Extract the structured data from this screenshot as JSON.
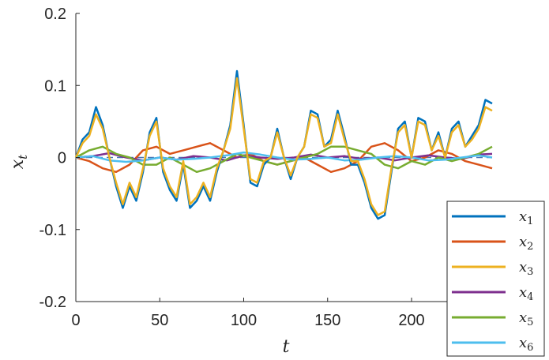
{
  "chart_data": {
    "type": "line",
    "xlabel": "t",
    "ylabel": "x",
    "ylabel_subscript": "t",
    "xlim": [
      0,
      256
    ],
    "ylim": [
      -0.2,
      0.2
    ],
    "xticks": [
      0,
      50,
      100,
      150,
      200
    ],
    "xtick_labels": [
      "0",
      "50",
      "100",
      "150",
      "200"
    ],
    "yticks": [
      0.2,
      0.1,
      0,
      -0.1,
      -0.2
    ],
    "ytick_labels": [
      "0.2",
      "0.1",
      "0",
      "-0.1",
      "-0.2"
    ],
    "grid": false,
    "legend_position": "bottom-right",
    "reference_line": {
      "y": 0,
      "style": "dashed",
      "color": "#4a78b4"
    },
    "series": [
      {
        "name": "x",
        "subscript": "1",
        "color": "#0072BD",
        "x": [
          0,
          4,
          8,
          12,
          16,
          20,
          24,
          28,
          32,
          36,
          40,
          44,
          48,
          52,
          56,
          60,
          64,
          68,
          72,
          76,
          80,
          84,
          88,
          92,
          96,
          100,
          104,
          108,
          112,
          116,
          120,
          124,
          128,
          132,
          136,
          140,
          144,
          148,
          152,
          156,
          160,
          164,
          168,
          172,
          176,
          180,
          184,
          188,
          192,
          196,
          200,
          204,
          208,
          212,
          216,
          220,
          224,
          228,
          232,
          236,
          240,
          244,
          248
        ],
        "y": [
          0.0,
          0.025,
          0.035,
          0.07,
          0.045,
          0.0,
          -0.04,
          -0.07,
          -0.04,
          -0.06,
          -0.02,
          0.035,
          0.055,
          -0.02,
          -0.045,
          -0.06,
          -0.01,
          -0.07,
          -0.06,
          -0.04,
          -0.06,
          -0.02,
          0.01,
          0.045,
          0.12,
          0.045,
          -0.035,
          -0.04,
          -0.01,
          0.0,
          0.04,
          0.0,
          -0.03,
          0.0,
          0.015,
          0.065,
          0.06,
          0.015,
          0.025,
          0.065,
          0.03,
          -0.01,
          -0.01,
          -0.035,
          -0.07,
          -0.085,
          -0.08,
          -0.02,
          0.04,
          0.05,
          0.0,
          0.055,
          0.05,
          0.01,
          0.035,
          0.0,
          0.04,
          0.05,
          0.015,
          0.03,
          0.045,
          0.08,
          0.075
        ]
      },
      {
        "name": "x",
        "subscript": "2",
        "color": "#D95319",
        "x": [
          0,
          8,
          16,
          24,
          32,
          40,
          48,
          56,
          64,
          72,
          80,
          88,
          96,
          104,
          112,
          120,
          128,
          136,
          144,
          152,
          160,
          168,
          176,
          184,
          192,
          200,
          208,
          216,
          224,
          232,
          240,
          248
        ],
        "y": [
          0.0,
          -0.005,
          -0.015,
          -0.02,
          -0.01,
          0.01,
          0.015,
          0.005,
          0.01,
          0.015,
          0.02,
          0.01,
          0.0,
          0.005,
          -0.005,
          -0.01,
          -0.005,
          0.0,
          -0.01,
          -0.02,
          -0.015,
          -0.005,
          0.015,
          0.02,
          0.01,
          -0.005,
          0.0,
          0.01,
          0.005,
          -0.005,
          -0.01,
          -0.015
        ]
      },
      {
        "name": "x",
        "subscript": "3",
        "color": "#EDB120",
        "x": [
          0,
          4,
          8,
          12,
          16,
          20,
          24,
          28,
          32,
          36,
          40,
          44,
          48,
          52,
          56,
          60,
          64,
          68,
          72,
          76,
          80,
          84,
          88,
          92,
          96,
          100,
          104,
          108,
          112,
          116,
          120,
          124,
          128,
          132,
          136,
          140,
          144,
          148,
          152,
          156,
          160,
          164,
          168,
          172,
          176,
          180,
          184,
          188,
          192,
          196,
          200,
          204,
          208,
          212,
          216,
          220,
          224,
          228,
          232,
          236,
          240,
          244,
          248
        ],
        "y": [
          0.0,
          0.02,
          0.03,
          0.06,
          0.04,
          0.0,
          -0.035,
          -0.065,
          -0.035,
          -0.055,
          -0.015,
          0.03,
          0.05,
          -0.015,
          -0.04,
          -0.055,
          -0.005,
          -0.065,
          -0.055,
          -0.035,
          -0.055,
          -0.015,
          0.01,
          0.04,
          0.11,
          0.04,
          -0.03,
          -0.035,
          -0.005,
          0.0,
          0.035,
          0.0,
          -0.025,
          0.0,
          0.015,
          0.06,
          0.055,
          0.015,
          0.02,
          0.06,
          0.025,
          -0.005,
          -0.005,
          -0.03,
          -0.065,
          -0.08,
          -0.075,
          -0.015,
          0.035,
          0.045,
          0.0,
          0.05,
          0.045,
          0.01,
          0.03,
          0.0,
          0.035,
          0.045,
          0.015,
          0.025,
          0.04,
          0.07,
          0.065
        ]
      },
      {
        "name": "x",
        "subscript": "4",
        "color": "#7E2F8E",
        "x": [
          0,
          10,
          20,
          30,
          40,
          50,
          60,
          70,
          80,
          90,
          100,
          110,
          120,
          130,
          140,
          150,
          160,
          170,
          180,
          190,
          200,
          210,
          220,
          230,
          240,
          248
        ],
        "y": [
          0.0,
          0.002,
          0.006,
          0.0,
          -0.004,
          0.0,
          -0.003,
          0.002,
          0.0,
          -0.004,
          0.003,
          0.0,
          -0.002,
          0.0,
          0.004,
          0.0,
          0.002,
          -0.002,
          0.0,
          -0.004,
          0.0,
          0.003,
          0.0,
          -0.002,
          0.004,
          0.005
        ]
      },
      {
        "name": "x",
        "subscript": "5",
        "color": "#77AC30",
        "x": [
          0,
          8,
          16,
          24,
          32,
          40,
          48,
          56,
          64,
          72,
          80,
          88,
          96,
          104,
          112,
          120,
          128,
          136,
          144,
          152,
          160,
          168,
          176,
          184,
          192,
          200,
          208,
          216,
          224,
          232,
          240,
          248
        ],
        "y": [
          0.0,
          0.01,
          0.015,
          0.005,
          0.0,
          -0.01,
          -0.01,
          0.0,
          -0.01,
          -0.02,
          -0.015,
          -0.005,
          0.005,
          0.0,
          -0.005,
          -0.01,
          -0.005,
          0.0,
          0.005,
          0.015,
          0.015,
          0.01,
          0.005,
          -0.01,
          -0.015,
          -0.005,
          -0.01,
          0.0,
          -0.005,
          0.0,
          0.005,
          0.015
        ]
      },
      {
        "name": "x",
        "subscript": "6",
        "color": "#4DBEEE",
        "x": [
          0,
          10,
          20,
          30,
          40,
          50,
          60,
          70,
          80,
          90,
          100,
          110,
          120,
          130,
          140,
          150,
          160,
          170,
          180,
          190,
          200,
          210,
          220,
          230,
          240,
          248
        ],
        "y": [
          0.0,
          0.002,
          -0.004,
          -0.006,
          -0.004,
          0.0,
          -0.003,
          -0.002,
          0.0,
          0.003,
          0.007,
          0.004,
          0.0,
          -0.003,
          -0.002,
          0.0,
          -0.004,
          -0.003,
          0.0,
          0.002,
          0.0,
          -0.004,
          -0.003,
          0.0,
          0.003,
          0.0
        ]
      }
    ]
  }
}
